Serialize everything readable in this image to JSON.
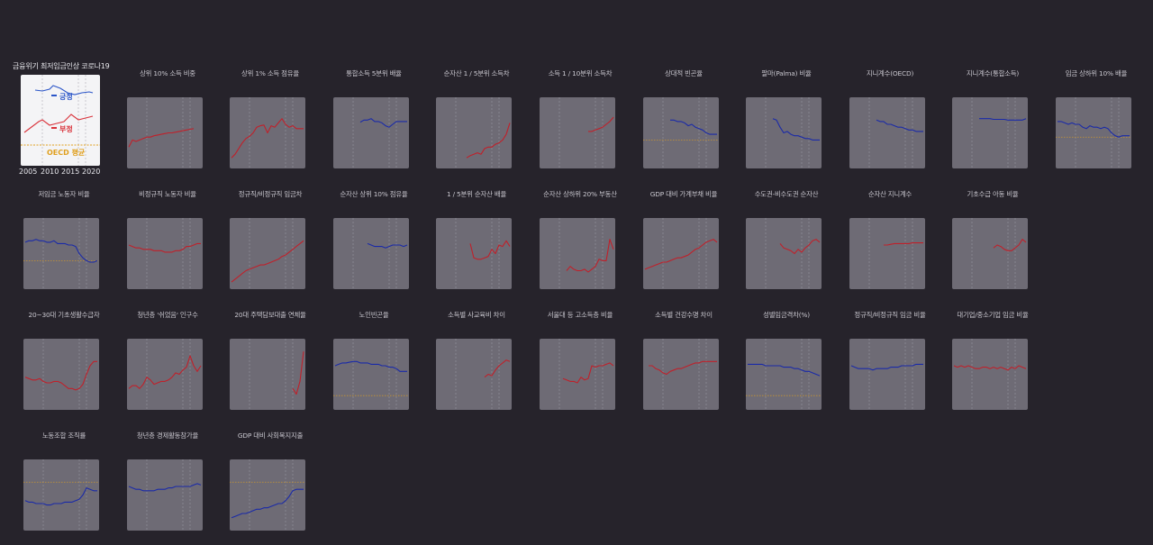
{
  "legend": {
    "events": [
      "금융위기",
      "최저임금인상",
      "코로나19"
    ],
    "positive_label": "긍정",
    "negative_label": "부정",
    "oecd_label": "OECD 평균",
    "years": [
      "2005",
      "2010",
      "2015",
      "2020"
    ],
    "colors": {
      "positive": "#2a55c8",
      "negative": "#d9323a",
      "oecd": "#e0a020"
    }
  },
  "chart_data": {
    "type": "line",
    "layout": "small-multiples",
    "x_start": 2003,
    "x_end": 2023,
    "event_years": [
      2008,
      2018,
      2020
    ],
    "charts": [
      {
        "title": "상위 10% 소득 비중",
        "sentiment": "negative",
        "oecd": null,
        "years": [
          2003,
          2021
        ],
        "values": [
          0.3,
          0.4,
          0.38,
          0.4,
          0.42,
          0.44,
          0.44,
          0.46,
          0.47,
          0.48,
          0.49,
          0.5,
          0.5,
          0.51,
          0.52,
          0.53,
          0.54,
          0.55,
          0.56
        ]
      },
      {
        "title": "상위 1% 소득 점유율",
        "sentiment": "negative",
        "oecd": null,
        "years": [
          2003,
          2023
        ],
        "values": [
          0.15,
          0.2,
          0.28,
          0.36,
          0.42,
          0.45,
          0.5,
          0.58,
          0.6,
          0.61,
          0.5,
          0.6,
          0.58,
          0.64,
          0.7,
          0.62,
          0.58,
          0.6,
          0.56,
          0.56,
          0.56
        ]
      },
      {
        "title": "통합소득 5분위 배율",
        "sentiment": "positive",
        "oecd": null,
        "years": [
          2010,
          2023
        ],
        "values": [
          0.65,
          0.68,
          0.68,
          0.7,
          0.66,
          0.66,
          0.64,
          0.6,
          0.58,
          0.62,
          0.66,
          0.66,
          0.66,
          0.66
        ]
      },
      {
        "title": "순자산 1 / 5분위 소득차",
        "sentiment": "negative",
        "oecd": null,
        "years": [
          2011,
          2023
        ],
        "values": [
          0.15,
          0.18,
          0.2,
          0.22,
          0.2,
          0.28,
          0.3,
          0.3,
          0.34,
          0.36,
          0.4,
          0.48,
          0.64
        ]
      },
      {
        "title": "소득 1 / 10분위 소득차",
        "sentiment": "negative",
        "oecd": null,
        "years": [
          2016,
          2023
        ],
        "values": [
          0.52,
          0.52,
          0.54,
          0.56,
          0.58,
          0.62,
          0.66,
          0.72
        ]
      },
      {
        "title": "상대적 빈곤율",
        "sentiment": "positive",
        "oecd": 0.4,
        "years": [
          2010,
          2023
        ],
        "values": [
          0.68,
          0.68,
          0.66,
          0.66,
          0.64,
          0.6,
          0.62,
          0.58,
          0.56,
          0.54,
          0.5,
          0.48,
          0.48,
          0.48
        ]
      },
      {
        "title": "팔마(Palma) 비율",
        "sentiment": "positive",
        "oecd": null,
        "years": [
          2010,
          2023
        ],
        "values": [
          0.7,
          0.68,
          0.58,
          0.5,
          0.52,
          0.48,
          0.46,
          0.46,
          0.44,
          0.42,
          0.42,
          0.4,
          0.4,
          0.4
        ]
      },
      {
        "title": "지니계수(OECD)",
        "sentiment": "positive",
        "oecd": null,
        "years": [
          2010,
          2023
        ],
        "values": [
          0.68,
          0.66,
          0.66,
          0.62,
          0.62,
          0.6,
          0.58,
          0.58,
          0.56,
          0.54,
          0.54,
          0.52,
          0.52,
          0.52
        ]
      },
      {
        "title": "지니계수(통합소득)",
        "sentiment": "positive",
        "oecd": null,
        "years": [
          2010,
          2023
        ],
        "values": [
          0.7,
          0.7,
          0.7,
          0.7,
          0.69,
          0.69,
          0.69,
          0.69,
          0.68,
          0.68,
          0.68,
          0.68,
          0.68,
          0.7
        ]
      },
      {
        "title": "임금 상하위 10% 배율",
        "sentiment": "positive",
        "oecd": 0.44,
        "years": [
          2003,
          2023
        ],
        "values": [
          0.66,
          0.66,
          0.64,
          0.62,
          0.64,
          0.62,
          0.62,
          0.58,
          0.56,
          0.6,
          0.58,
          0.58,
          0.56,
          0.58,
          0.56,
          0.5,
          0.46,
          0.44,
          0.46,
          0.46,
          0.46
        ]
      },
      {
        "title": "저임금 노동자 비율",
        "sentiment": "positive",
        "oecd": 0.4,
        "years": [
          2003,
          2023
        ],
        "values": [
          0.66,
          0.68,
          0.68,
          0.7,
          0.68,
          0.68,
          0.66,
          0.66,
          0.68,
          0.64,
          0.64,
          0.64,
          0.62,
          0.62,
          0.6,
          0.5,
          0.44,
          0.4,
          0.38,
          0.38,
          0.4
        ]
      },
      {
        "title": "비정규직 노동자 비율",
        "sentiment": "negative",
        "oecd": null,
        "years": [
          2003,
          2023
        ],
        "values": [
          0.62,
          0.6,
          0.58,
          0.58,
          0.56,
          0.56,
          0.56,
          0.54,
          0.54,
          0.54,
          0.52,
          0.52,
          0.52,
          0.54,
          0.54,
          0.56,
          0.6,
          0.6,
          0.62,
          0.64,
          0.64
        ]
      },
      {
        "title": "정규직/비정규직 임금차",
        "sentiment": "negative",
        "oecd": null,
        "years": [
          2003,
          2023
        ],
        "values": [
          0.1,
          0.14,
          0.18,
          0.22,
          0.26,
          0.28,
          0.3,
          0.32,
          0.34,
          0.34,
          0.36,
          0.38,
          0.4,
          0.42,
          0.46,
          0.48,
          0.52,
          0.56,
          0.6,
          0.64,
          0.68
        ]
      },
      {
        "title": "순자산 상위 10% 점유율",
        "sentiment": "positive",
        "oecd": null,
        "years": [
          2012,
          2023
        ],
        "values": [
          0.64,
          0.62,
          0.6,
          0.6,
          0.6,
          0.58,
          0.6,
          0.62,
          0.62,
          0.62,
          0.6,
          0.62
        ]
      },
      {
        "title": "1 / 5분위 순자산 배율",
        "sentiment": "negative",
        "oecd": null,
        "years": [
          2012,
          2023
        ],
        "values": [
          0.64,
          0.44,
          0.42,
          0.42,
          0.44,
          0.46,
          0.56,
          0.5,
          0.62,
          0.6,
          0.68,
          0.6
        ]
      },
      {
        "title": "순자산 상하위 20% 부동산",
        "sentiment": "negative",
        "oecd": null,
        "years": [
          2010,
          2023
        ],
        "values": [
          0.26,
          0.32,
          0.28,
          0.26,
          0.26,
          0.28,
          0.24,
          0.28,
          0.32,
          0.42,
          0.4,
          0.4,
          0.7,
          0.56
        ]
      },
      {
        "title": "GDP 대비 가계부채 비율",
        "sentiment": "negative",
        "oecd": null,
        "years": [
          2003,
          2023
        ],
        "values": [
          0.28,
          0.3,
          0.32,
          0.34,
          0.36,
          0.38,
          0.38,
          0.4,
          0.42,
          0.44,
          0.44,
          0.46,
          0.48,
          0.52,
          0.56,
          0.58,
          0.62,
          0.66,
          0.68,
          0.7,
          0.66
        ]
      },
      {
        "title": "수도권-비수도권 순자산",
        "sentiment": "negative",
        "oecd": null,
        "years": [
          2012,
          2023
        ],
        "values": [
          0.64,
          0.58,
          0.56,
          0.54,
          0.5,
          0.56,
          0.52,
          0.58,
          0.62,
          0.68,
          0.7,
          0.66
        ]
      },
      {
        "title": "순자산 지니계수",
        "sentiment": "negative",
        "oecd": null,
        "years": [
          2012,
          2023
        ],
        "values": [
          0.62,
          0.62,
          0.63,
          0.64,
          0.64,
          0.64,
          0.64,
          0.64,
          0.65,
          0.65,
          0.65,
          0.65
        ]
      },
      {
        "title": "기초수급 아동 비율",
        "sentiment": "negative",
        "oecd": null,
        "years": [
          2014,
          2023
        ],
        "values": [
          0.58,
          0.62,
          0.6,
          0.56,
          0.54,
          0.54,
          0.58,
          0.62,
          0.7,
          0.66
        ]
      },
      {
        "title": "20~30대 기초생활수급자",
        "sentiment": "negative",
        "oecd": null,
        "years": [
          2003,
          2023
        ],
        "values": [
          0.46,
          0.44,
          0.42,
          0.42,
          0.44,
          0.4,
          0.38,
          0.38,
          0.4,
          0.4,
          0.38,
          0.34,
          0.3,
          0.3,
          0.28,
          0.3,
          0.36,
          0.5,
          0.62,
          0.68,
          0.68
        ]
      },
      {
        "title": "청년층 '쉬었음' 인구수",
        "sentiment": "negative",
        "oecd": null,
        "years": [
          2003,
          2023
        ],
        "values": [
          0.3,
          0.34,
          0.34,
          0.3,
          0.36,
          0.46,
          0.42,
          0.36,
          0.38,
          0.4,
          0.4,
          0.42,
          0.46,
          0.52,
          0.5,
          0.56,
          0.6,
          0.76,
          0.62,
          0.54,
          0.62
        ]
      },
      {
        "title": "20대 주택담보대출 연체율",
        "sentiment": "negative",
        "oecd": null,
        "years": [
          2020,
          2023
        ],
        "values": [
          0.3,
          0.22,
          0.4,
          0.82
        ]
      },
      {
        "title": "노인빈곤율",
        "sentiment": "positive",
        "oecd": 0.2,
        "years": [
          2003,
          2023
        ],
        "values": [
          0.62,
          0.64,
          0.66,
          0.66,
          0.67,
          0.68,
          0.68,
          0.66,
          0.66,
          0.66,
          0.64,
          0.64,
          0.64,
          0.62,
          0.62,
          0.6,
          0.6,
          0.58,
          0.54,
          0.54,
          0.54
        ]
      },
      {
        "title": "소득별 사교육비 차이",
        "sentiment": "negative",
        "oecd": null,
        "years": [
          2016,
          2023
        ],
        "values": [
          0.46,
          0.5,
          0.48,
          0.56,
          0.62,
          0.66,
          0.7,
          0.68
        ]
      },
      {
        "title": "서울대 등 고소득층 비율",
        "sentiment": "negative",
        "oecd": null,
        "years": [
          2009,
          2023
        ],
        "values": [
          0.44,
          0.42,
          0.4,
          0.4,
          0.38,
          0.46,
          0.42,
          0.44,
          0.62,
          0.6,
          0.62,
          0.62,
          0.64,
          0.66,
          0.62
        ]
      },
      {
        "title": "소득별 건강수명 차이",
        "sentiment": "negative",
        "oecd": null,
        "years": [
          2004,
          2023
        ],
        "values": [
          0.62,
          0.62,
          0.58,
          0.56,
          0.52,
          0.5,
          0.54,
          0.56,
          0.58,
          0.58,
          0.6,
          0.62,
          0.64,
          0.66,
          0.66,
          0.68,
          0.68,
          0.68,
          0.68,
          0.68
        ]
      },
      {
        "title": "성별임금격차(%)",
        "sentiment": "positive",
        "oecd": 0.2,
        "years": [
          2003,
          2023
        ],
        "values": [
          0.64,
          0.64,
          0.64,
          0.64,
          0.64,
          0.62,
          0.62,
          0.62,
          0.62,
          0.62,
          0.6,
          0.6,
          0.6,
          0.58,
          0.58,
          0.56,
          0.54,
          0.54,
          0.52,
          0.5,
          0.48
        ]
      },
      {
        "title": "정규직/비정규직 임금 비율",
        "sentiment": "positive",
        "oecd": null,
        "years": [
          2003,
          2023
        ],
        "values": [
          0.62,
          0.6,
          0.58,
          0.58,
          0.58,
          0.58,
          0.56,
          0.58,
          0.58,
          0.58,
          0.58,
          0.6,
          0.6,
          0.6,
          0.62,
          0.62,
          0.62,
          0.62,
          0.64,
          0.64,
          0.64
        ]
      },
      {
        "title": "대기업/중소기업 임금 비율",
        "sentiment": "negative",
        "oecd": null,
        "years": [
          2003,
          2023
        ],
        "values": [
          0.62,
          0.6,
          0.62,
          0.6,
          0.62,
          0.6,
          0.58,
          0.58,
          0.6,
          0.6,
          0.58,
          0.6,
          0.58,
          0.6,
          0.58,
          0.56,
          0.6,
          0.58,
          0.62,
          0.6,
          0.58
        ]
      },
      {
        "title": "노동조합 조직률",
        "sentiment": "positive",
        "oecd": 0.68,
        "years": [
          2003,
          2023
        ],
        "values": [
          0.42,
          0.4,
          0.4,
          0.38,
          0.38,
          0.38,
          0.36,
          0.36,
          0.38,
          0.38,
          0.38,
          0.4,
          0.4,
          0.4,
          0.42,
          0.44,
          0.5,
          0.6,
          0.58,
          0.56,
          0.56
        ]
      },
      {
        "title": "청년층 경제활동참가율",
        "sentiment": "positive",
        "oecd": null,
        "years": [
          2003,
          2023
        ],
        "values": [
          0.62,
          0.6,
          0.58,
          0.58,
          0.56,
          0.56,
          0.56,
          0.56,
          0.58,
          0.58,
          0.58,
          0.6,
          0.6,
          0.62,
          0.62,
          0.62,
          0.62,
          0.62,
          0.64,
          0.66,
          0.64
        ]
      },
      {
        "title": "GDP 대비 사회복지지출",
        "sentiment": "positive",
        "oecd": 0.68,
        "years": [
          2003,
          2023
        ],
        "values": [
          0.18,
          0.2,
          0.22,
          0.24,
          0.24,
          0.26,
          0.28,
          0.3,
          0.3,
          0.32,
          0.32,
          0.34,
          0.36,
          0.38,
          0.38,
          0.42,
          0.48,
          0.56,
          0.58,
          0.58,
          0.58
        ]
      }
    ]
  }
}
